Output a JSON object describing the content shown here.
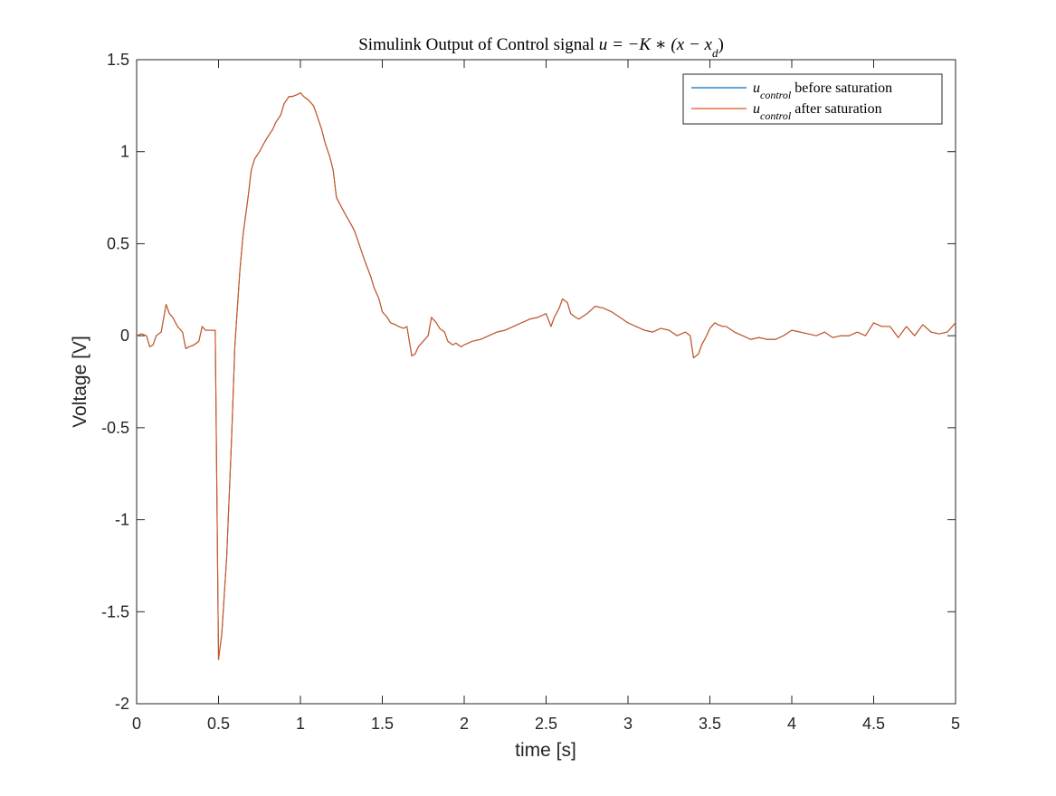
{
  "chart_data": {
    "type": "line",
    "title_prefix": "Simulink Output of Control signal ",
    "title_math": "u = −K ∗ (x − x",
    "title_math_sub": "d",
    "title_math_close": ")",
    "xlabel": "time [s]",
    "ylabel": "Voltage [V]",
    "xlim": [
      0,
      5
    ],
    "ylim": [
      -2,
      1.5
    ],
    "xticks": [
      0,
      0.5,
      1,
      1.5,
      2,
      2.5,
      3,
      3.5,
      4,
      4.5,
      5
    ],
    "xtick_labels": [
      "0",
      "0.5",
      "1",
      "1.5",
      "2",
      "2.5",
      "3",
      "3.5",
      "4",
      "4.5",
      "5"
    ],
    "yticks": [
      -2,
      -1.5,
      -1,
      -0.5,
      0,
      0.5,
      1,
      1.5
    ],
    "ytick_labels": [
      "-2",
      "-1.5",
      "-1",
      "-0.5",
      "0",
      "0.5",
      "1",
      "1.5"
    ],
    "grid": false,
    "legend_placement": "top-right",
    "series": [
      {
        "name_math": "u",
        "name_sub": "control",
        "name_suffix": " before saturation",
        "color": "#0072BD",
        "x": [
          0,
          0.03,
          0.06,
          0.08,
          0.1,
          0.12,
          0.15,
          0.18,
          0.2,
          0.22,
          0.25,
          0.28,
          0.3,
          0.32,
          0.35,
          0.38,
          0.4,
          0.42,
          0.45,
          0.48,
          0.5,
          0.52,
          0.55,
          0.58,
          0.6,
          0.63,
          0.65,
          0.68,
          0.7,
          0.72,
          0.75,
          0.78,
          0.8,
          0.83,
          0.85,
          0.88,
          0.9,
          0.93,
          0.95,
          0.98,
          1.0,
          1.02,
          1.05,
          1.08,
          1.1,
          1.13,
          1.15,
          1.18,
          1.2,
          1.22,
          1.25,
          1.28,
          1.3,
          1.33,
          1.35,
          1.38,
          1.4,
          1.43,
          1.45,
          1.48,
          1.5,
          1.53,
          1.55,
          1.58,
          1.6,
          1.63,
          1.65,
          1.68,
          1.7,
          1.72,
          1.75,
          1.78,
          1.8,
          1.83,
          1.85,
          1.88,
          1.9,
          1.93,
          1.95,
          1.98,
          2.0,
          2.05,
          2.1,
          2.15,
          2.2,
          2.25,
          2.3,
          2.35,
          2.4,
          2.45,
          2.5,
          2.53,
          2.55,
          2.58,
          2.6,
          2.63,
          2.65,
          2.68,
          2.7,
          2.75,
          2.8,
          2.85,
          2.9,
          2.95,
          3.0,
          3.05,
          3.1,
          3.15,
          3.2,
          3.25,
          3.3,
          3.35,
          3.38,
          3.4,
          3.43,
          3.45,
          3.48,
          3.5,
          3.53,
          3.55,
          3.58,
          3.6,
          3.65,
          3.7,
          3.75,
          3.8,
          3.85,
          3.9,
          3.95,
          4.0,
          4.05,
          4.1,
          4.15,
          4.2,
          4.25,
          4.3,
          4.35,
          4.4,
          4.45,
          4.5,
          4.55,
          4.6,
          4.65,
          4.7,
          4.75,
          4.8,
          4.85,
          4.9,
          4.95,
          5.0
        ],
        "y": [
          0.0,
          0.01,
          0.0,
          -0.06,
          -0.05,
          0.0,
          0.02,
          0.17,
          0.12,
          0.1,
          0.05,
          0.02,
          -0.07,
          -0.06,
          -0.05,
          -0.03,
          0.05,
          0.03,
          0.03,
          0.03,
          -1.76,
          -1.62,
          -1.2,
          -0.55,
          -0.05,
          0.35,
          0.55,
          0.75,
          0.9,
          0.96,
          1.0,
          1.05,
          1.08,
          1.12,
          1.16,
          1.2,
          1.26,
          1.3,
          1.3,
          1.31,
          1.32,
          1.3,
          1.28,
          1.25,
          1.2,
          1.12,
          1.05,
          0.97,
          0.9,
          0.75,
          0.7,
          0.65,
          0.62,
          0.57,
          0.52,
          0.44,
          0.39,
          0.32,
          0.26,
          0.2,
          0.13,
          0.1,
          0.07,
          0.06,
          0.05,
          0.04,
          0.05,
          -0.11,
          -0.1,
          -0.06,
          -0.03,
          0.0,
          0.1,
          0.07,
          0.04,
          0.02,
          -0.03,
          -0.05,
          -0.04,
          -0.06,
          -0.05,
          -0.03,
          -0.02,
          0.0,
          0.02,
          0.03,
          0.05,
          0.07,
          0.09,
          0.1,
          0.12,
          0.05,
          0.1,
          0.15,
          0.2,
          0.18,
          0.12,
          0.1,
          0.09,
          0.12,
          0.16,
          0.15,
          0.13,
          0.1,
          0.07,
          0.05,
          0.03,
          0.02,
          0.04,
          0.03,
          0.0,
          0.02,
          0.0,
          -0.12,
          -0.1,
          -0.05,
          0.0,
          0.04,
          0.07,
          0.06,
          0.05,
          0.05,
          0.02,
          0.0,
          -0.02,
          -0.01,
          -0.02,
          -0.02,
          0.0,
          0.03,
          0.02,
          0.01,
          0.0,
          0.02,
          -0.01,
          0.0,
          0.0,
          0.02,
          0.0,
          0.07,
          0.05,
          0.05,
          -0.01,
          0.05,
          0.0,
          0.06,
          0.02,
          0.01,
          0.02,
          0.07
        ]
      },
      {
        "name_math": "u",
        "name_sub": "control",
        "name_suffix": " after saturation",
        "color": "#D95319",
        "x": [
          0,
          0.03,
          0.06,
          0.08,
          0.1,
          0.12,
          0.15,
          0.18,
          0.2,
          0.22,
          0.25,
          0.28,
          0.3,
          0.32,
          0.35,
          0.38,
          0.4,
          0.42,
          0.45,
          0.48,
          0.5,
          0.52,
          0.55,
          0.58,
          0.6,
          0.63,
          0.65,
          0.68,
          0.7,
          0.72,
          0.75,
          0.78,
          0.8,
          0.83,
          0.85,
          0.88,
          0.9,
          0.93,
          0.95,
          0.98,
          1.0,
          1.02,
          1.05,
          1.08,
          1.1,
          1.13,
          1.15,
          1.18,
          1.2,
          1.22,
          1.25,
          1.28,
          1.3,
          1.33,
          1.35,
          1.38,
          1.4,
          1.43,
          1.45,
          1.48,
          1.5,
          1.53,
          1.55,
          1.58,
          1.6,
          1.63,
          1.65,
          1.68,
          1.7,
          1.72,
          1.75,
          1.78,
          1.8,
          1.83,
          1.85,
          1.88,
          1.9,
          1.93,
          1.95,
          1.98,
          2.0,
          2.05,
          2.1,
          2.15,
          2.2,
          2.25,
          2.3,
          2.35,
          2.4,
          2.45,
          2.5,
          2.53,
          2.55,
          2.58,
          2.6,
          2.63,
          2.65,
          2.68,
          2.7,
          2.75,
          2.8,
          2.85,
          2.9,
          2.95,
          3.0,
          3.05,
          3.1,
          3.15,
          3.2,
          3.25,
          3.3,
          3.35,
          3.38,
          3.4,
          3.43,
          3.45,
          3.48,
          3.5,
          3.53,
          3.55,
          3.58,
          3.6,
          3.65,
          3.7,
          3.75,
          3.8,
          3.85,
          3.9,
          3.95,
          4.0,
          4.05,
          4.1,
          4.15,
          4.2,
          4.25,
          4.3,
          4.35,
          4.4,
          4.45,
          4.5,
          4.55,
          4.6,
          4.65,
          4.7,
          4.75,
          4.8,
          4.85,
          4.9,
          4.95,
          5.0
        ],
        "y": [
          0.0,
          0.01,
          0.0,
          -0.06,
          -0.05,
          0.0,
          0.02,
          0.17,
          0.12,
          0.1,
          0.05,
          0.02,
          -0.07,
          -0.06,
          -0.05,
          -0.03,
          0.05,
          0.03,
          0.03,
          0.03,
          -1.76,
          -1.62,
          -1.2,
          -0.55,
          -0.05,
          0.35,
          0.55,
          0.75,
          0.9,
          0.96,
          1.0,
          1.05,
          1.08,
          1.12,
          1.16,
          1.2,
          1.26,
          1.3,
          1.3,
          1.31,
          1.32,
          1.3,
          1.28,
          1.25,
          1.2,
          1.12,
          1.05,
          0.97,
          0.9,
          0.75,
          0.7,
          0.65,
          0.62,
          0.57,
          0.52,
          0.44,
          0.39,
          0.32,
          0.26,
          0.2,
          0.13,
          0.1,
          0.07,
          0.06,
          0.05,
          0.04,
          0.05,
          -0.11,
          -0.1,
          -0.06,
          -0.03,
          0.0,
          0.1,
          0.07,
          0.04,
          0.02,
          -0.03,
          -0.05,
          -0.04,
          -0.06,
          -0.05,
          -0.03,
          -0.02,
          0.0,
          0.02,
          0.03,
          0.05,
          0.07,
          0.09,
          0.1,
          0.12,
          0.05,
          0.1,
          0.15,
          0.2,
          0.18,
          0.12,
          0.1,
          0.09,
          0.12,
          0.16,
          0.15,
          0.13,
          0.1,
          0.07,
          0.05,
          0.03,
          0.02,
          0.04,
          0.03,
          0.0,
          0.02,
          0.0,
          -0.12,
          -0.1,
          -0.05,
          0.0,
          0.04,
          0.07,
          0.06,
          0.05,
          0.05,
          0.02,
          0.0,
          -0.02,
          -0.01,
          -0.02,
          -0.02,
          0.0,
          0.03,
          0.02,
          0.01,
          0.0,
          0.02,
          -0.01,
          0.0,
          0.0,
          0.02,
          0.0,
          0.07,
          0.05,
          0.05,
          -0.01,
          0.05,
          0.0,
          0.06,
          0.02,
          0.01,
          0.02,
          0.07
        ]
      }
    ]
  }
}
